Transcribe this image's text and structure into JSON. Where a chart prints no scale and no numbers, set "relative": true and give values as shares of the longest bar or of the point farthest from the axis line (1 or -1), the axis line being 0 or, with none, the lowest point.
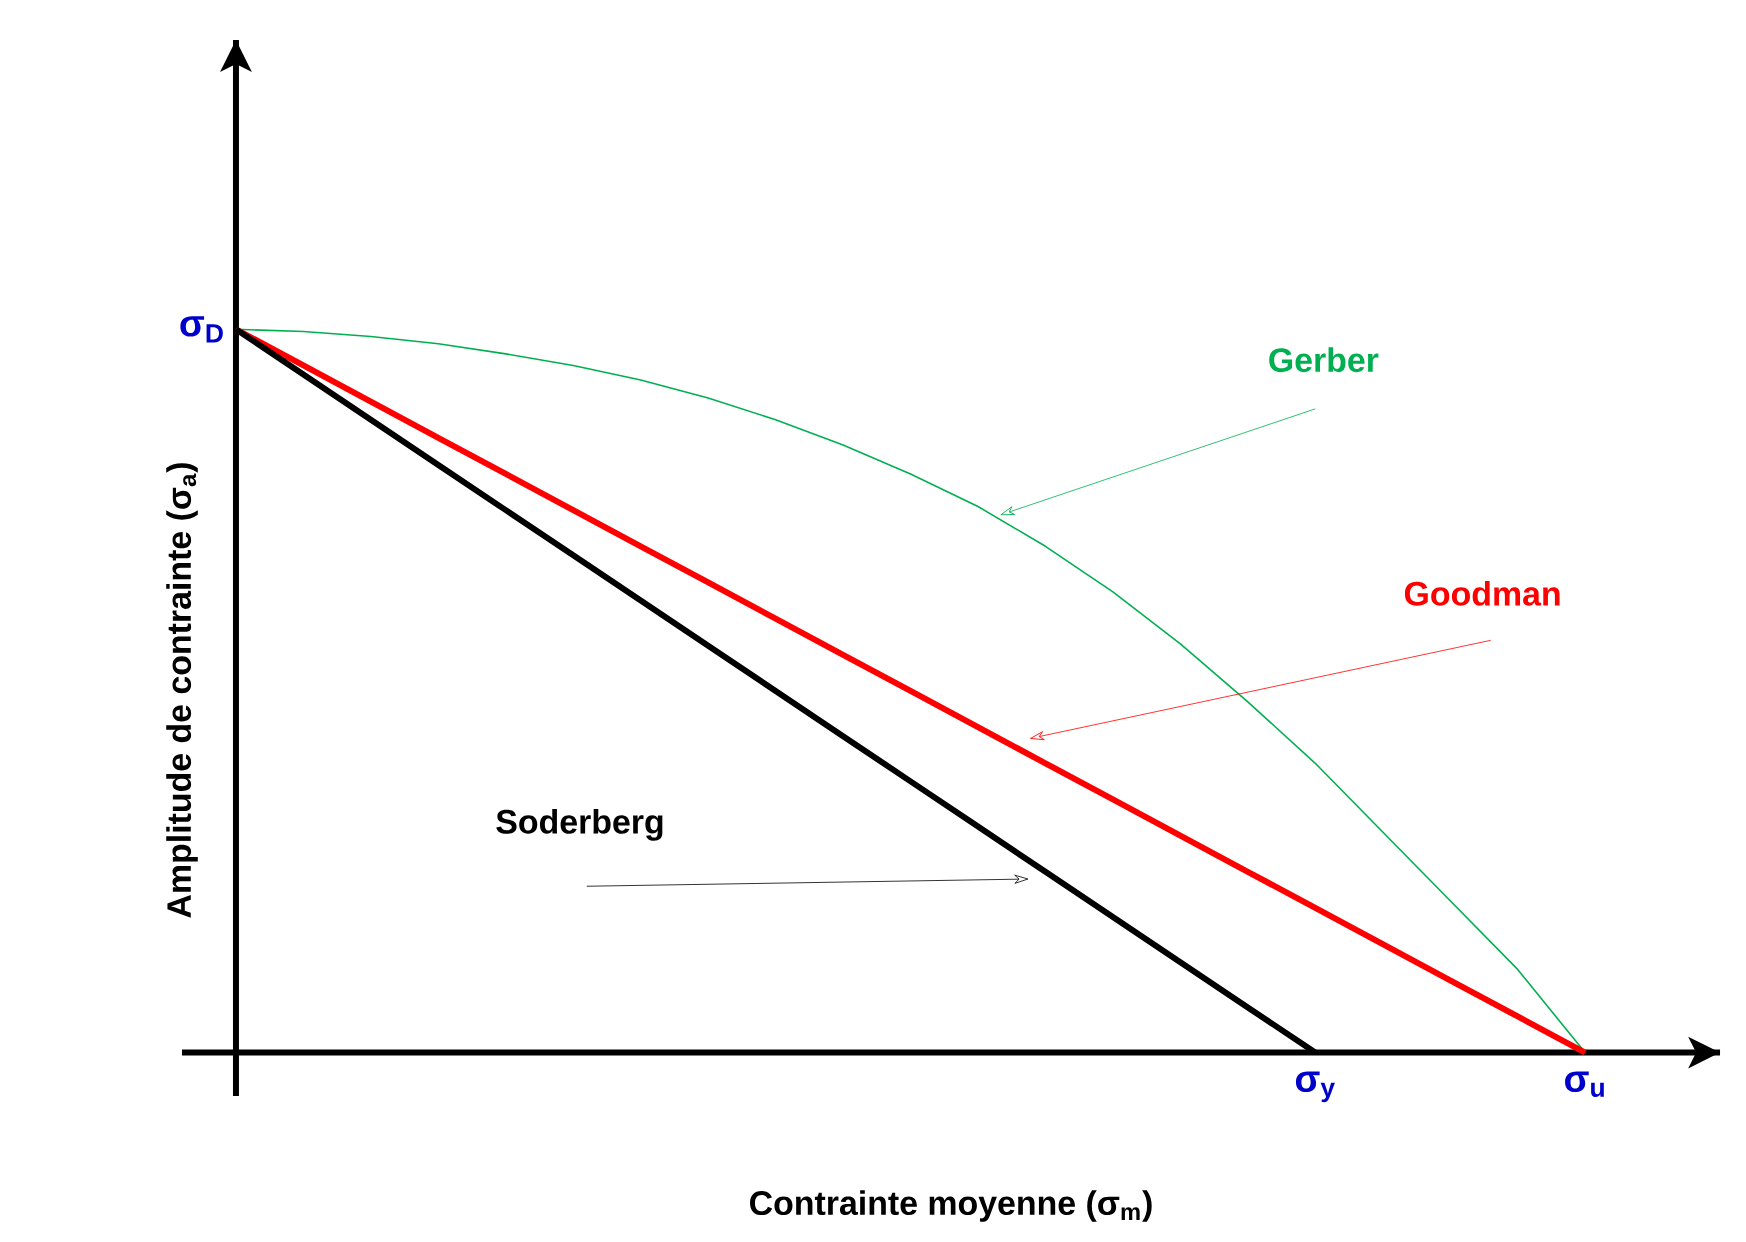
{
  "chart_data": {
    "type": "line",
    "relative": true,
    "xlabel": "Contrainte moyenne (σ$_{m}$)",
    "ylabel": "Amplitude de contrainte (σ$_{a}$)",
    "categories": [
      null,
      null,
      null,
      null,
      null,
      null,
      null,
      null,
      null,
      null,
      null,
      null,
      null,
      null,
      null,
      null,
      "σ$_{y}$",
      null,
      null,
      null,
      "σ$_{u}$"
    ],
    "annotations": [
      "σ$_{D}$"
    ],
    "series": [
      {
        "name": "Gerber",
        "color": "#00b050",
        "values": [
          1,
          0.997,
          0.99,
          0.98,
          0.966,
          0.95,
          0.93,
          0.905,
          0.875,
          0.84,
          0.8,
          0.755,
          0.7,
          0.637,
          0.565,
          0.485,
          0.4,
          0.305,
          0.21,
          0.115,
          0
        ]
      },
      {
        "name": "Goodman",
        "color": "#ff0000",
        "values": [
          1,
          0.95,
          0.9,
          0.85,
          0.8,
          0.75,
          0.7,
          0.65,
          0.6,
          0.55,
          0.5,
          0.45,
          0.4,
          0.35,
          0.3,
          0.25,
          0.2,
          0.15,
          0.1,
          0.05,
          0
        ]
      },
      {
        "name": "Soderberg",
        "color": "#000000",
        "values": [
          1,
          0.9375,
          0.875,
          0.8125,
          0.75,
          0.6875,
          0.625,
          0.5625,
          0.5,
          0.4375,
          0.375,
          0.3125,
          0.25,
          0.1875,
          0.125,
          0.0625,
          0,
          null,
          null,
          null,
          null
        ]
      }
    ]
  }
}
